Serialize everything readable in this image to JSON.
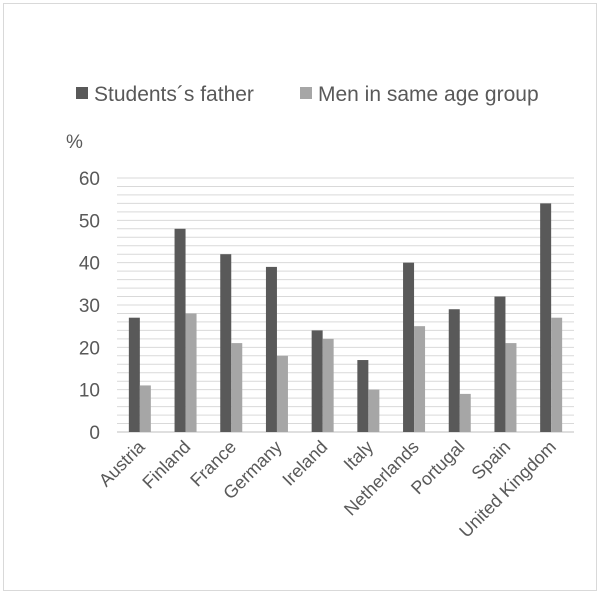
{
  "chart_data": {
    "type": "bar",
    "y_unit_label": "%",
    "categories": [
      "Austria",
      "Finland",
      "France",
      "Germany",
      "Ireland",
      "Italy",
      "Netherlands",
      "Portugal",
      "Spain",
      "United Kingdom"
    ],
    "series": [
      {
        "name": "Students´s father",
        "color": "#595959",
        "values": [
          27,
          48,
          42,
          39,
          24,
          17,
          40,
          29,
          32,
          54
        ]
      },
      {
        "name": "Men in same age group",
        "color": "#a6a6a6",
        "values": [
          11,
          28,
          21,
          18,
          22,
          10,
          25,
          9,
          21,
          27
        ]
      }
    ],
    "ylim": [
      0,
      60
    ],
    "yticks": [
      0,
      10,
      20,
      30,
      40,
      50,
      60
    ],
    "minor_gridlines_step": 2,
    "grid": true,
    "legend_position": "top",
    "gridline_color": "#d9d9d9"
  }
}
